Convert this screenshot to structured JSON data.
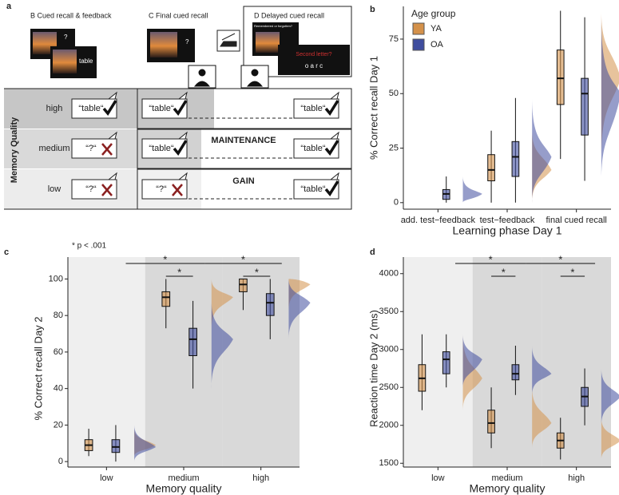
{
  "panel_a": {
    "label": "a",
    "steps": [
      {
        "title": "B Cued recall & feedback",
        "screen_texts": [
          "?",
          "table"
        ]
      },
      {
        "title": "C  Final cued recall",
        "screen_texts": [
          "?"
        ]
      },
      {
        "title": "D  Delayed cued recall",
        "screen_texts": [
          "Remembered or forgotten?",
          "Second letter?",
          "o a r c"
        ]
      }
    ],
    "memory_quality": {
      "title": "Memory Quality",
      "rows": [
        {
          "level": "high",
          "cued": "“table“",
          "final": "“table“",
          "delayed": "“table“"
        },
        {
          "level": "medium",
          "cued": "“?“",
          "final": "“table“",
          "delayed": "“table“",
          "label": "MAINTENANCE"
        },
        {
          "level": "low",
          "cued": "“?“",
          "final": "“?“",
          "delayed": "“table“",
          "label": "GAIN"
        }
      ]
    }
  },
  "chart_data": [
    {
      "type": "box",
      "panel": "b",
      "x_label": "Learning phase Day 1",
      "y_label": "% Correct recall Day 1",
      "categories": [
        "add. test−feedback",
        "test−feedback",
        "final cued recall"
      ],
      "series": [
        {
          "name": "YA",
          "color": "#d4914a",
          "boxes": [
            null,
            {
              "min": 0,
              "q1": 10,
              "median": 15,
              "q3": 22,
              "max": 33
            },
            {
              "min": 20,
              "q1": 45,
              "median": 57,
              "q3": 70,
              "max": 88
            }
          ]
        },
        {
          "name": "OA",
          "color": "#3f4d9e",
          "boxes": [
            {
              "min": 0,
              "q1": 1.5,
              "median": 4,
              "q3": 6,
              "max": 12
            },
            {
              "min": 0,
              "q1": 12,
              "median": 21,
              "q3": 28,
              "max": 48
            },
            {
              "min": 10,
              "q1": 31,
              "median": 50,
              "q3": 57,
              "max": 85
            }
          ]
        }
      ],
      "ylim": [
        -3,
        90
      ],
      "yticks": [
        0,
        25,
        50,
        75
      ],
      "legend": {
        "title": "Age group",
        "position": "top-left"
      }
    },
    {
      "type": "box",
      "panel": "c",
      "x_label": "Memory quality",
      "y_label": "% Correct recall Day 2",
      "note": "* p < .001",
      "categories": [
        "low",
        "medium",
        "high"
      ],
      "series": [
        {
          "color": "#d4914a",
          "boxes": [
            {
              "min": 3,
              "q1": 6,
              "median": 9,
              "q3": 12,
              "max": 18
            },
            {
              "min": 73,
              "q1": 85,
              "median": 90,
              "q3": 93,
              "max": 100
            },
            {
              "min": 83,
              "q1": 93,
              "median": 97,
              "q3": 100,
              "max": 100
            }
          ]
        },
        {
          "color": "#3f4d9e",
          "boxes": [
            {
              "min": 0,
              "q1": 5,
              "median": 8,
              "q3": 12,
              "max": 20
            },
            {
              "min": 40,
              "q1": 58,
              "median": 67,
              "q3": 73,
              "max": 88
            },
            {
              "min": 67,
              "q1": 80,
              "median": 87,
              "q3": 92,
              "max": 100
            }
          ]
        }
      ],
      "ylim": [
        -3,
        105
      ],
      "yticks": [
        0,
        20,
        40,
        60,
        80,
        100
      ],
      "category_backgrounds": [
        "#efefef",
        "#d9d9d9",
        "#d9d9d9"
      ],
      "significance": [
        "*",
        "*",
        "*",
        "*"
      ]
    },
    {
      "type": "box",
      "panel": "d",
      "x_label": "Memory quality",
      "y_label": "Reaction time Day 2 (ms)",
      "categories": [
        "low",
        "medium",
        "high"
      ],
      "series": [
        {
          "color": "#d4914a",
          "boxes": [
            {
              "min": 2200,
              "q1": 2450,
              "median": 2620,
              "q3": 2800,
              "max": 3200
            },
            {
              "min": 1700,
              "q1": 1900,
              "median": 2030,
              "q3": 2200,
              "max": 2500
            },
            {
              "min": 1550,
              "q1": 1700,
              "median": 1800,
              "q3": 1900,
              "max": 2100
            }
          ]
        },
        {
          "color": "#3f4d9e",
          "boxes": [
            {
              "min": 2500,
              "q1": 2680,
              "median": 2870,
              "q3": 2970,
              "max": 3200
            },
            {
              "min": 2400,
              "q1": 2600,
              "median": 2680,
              "q3": 2800,
              "max": 3050
            },
            {
              "min": 2000,
              "q1": 2250,
              "median": 2380,
              "q3": 2500,
              "max": 2750
            }
          ]
        }
      ],
      "ylim": [
        1450,
        4050
      ],
      "yticks": [
        1500,
        2000,
        2500,
        3000,
        3500,
        4000
      ],
      "category_backgrounds": [
        "#efefef",
        "#d9d9d9",
        "#d9d9d9"
      ],
      "significance": [
        "*",
        "*",
        "*",
        "*"
      ]
    }
  ]
}
